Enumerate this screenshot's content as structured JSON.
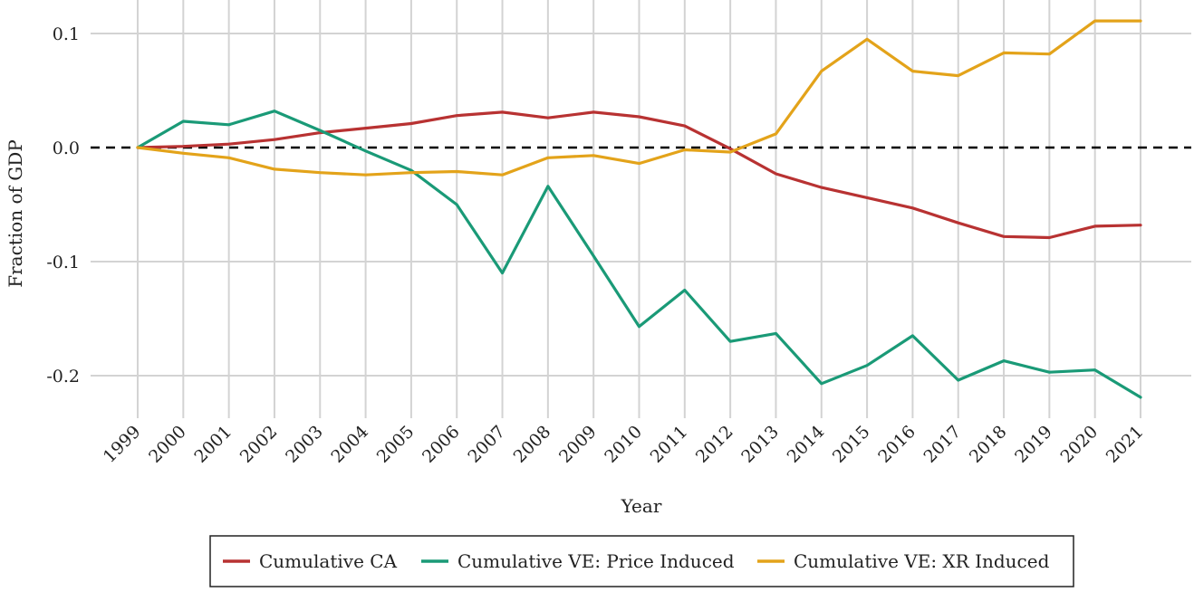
{
  "chart_data": {
    "type": "line",
    "title": "",
    "xlabel": "Year",
    "ylabel": "Fraction of GDP",
    "x": [
      "1999",
      "2000",
      "2001",
      "2002",
      "2003",
      "2004",
      "2005",
      "2006",
      "2007",
      "2008",
      "2009",
      "2010",
      "2011",
      "2012",
      "2013",
      "2014",
      "2015",
      "2016",
      "2017",
      "2018",
      "2019",
      "2020",
      "2021"
    ],
    "y_ticks": [
      0.1,
      0.0,
      -0.1,
      -0.2
    ],
    "y_tick_labels": [
      "0.1",
      "0.0",
      "-0.1",
      "-0.2"
    ],
    "ylim": [
      -0.245,
      0.128
    ],
    "grid": true,
    "zero_line": "dashed",
    "legend_position": "bottom",
    "series": [
      {
        "name": "Cumulative CA",
        "color": "#b83232",
        "values": [
          0.0,
          0.001,
          0.003,
          0.007,
          0.013,
          0.017,
          0.021,
          0.028,
          0.031,
          0.026,
          0.031,
          0.027,
          0.019,
          -0.001,
          -0.023,
          -0.035,
          -0.044,
          -0.053,
          -0.066,
          -0.078,
          -0.079,
          -0.069,
          -0.068
        ]
      },
      {
        "name": "Cumulative VE: Price Induced",
        "color": "#1a9a77",
        "values": [
          0.0,
          0.023,
          0.02,
          0.032,
          0.015,
          -0.003,
          -0.02,
          -0.05,
          -0.11,
          -0.034,
          -0.095,
          -0.157,
          -0.125,
          -0.17,
          -0.163,
          -0.207,
          -0.191,
          -0.165,
          -0.204,
          -0.187,
          -0.197,
          -0.195,
          -0.219
        ]
      },
      {
        "name": "Cumulative VE: XR Induced",
        "color": "#e3a31a",
        "values": [
          0.0,
          -0.005,
          -0.009,
          -0.019,
          -0.022,
          -0.024,
          -0.022,
          -0.021,
          -0.024,
          -0.009,
          -0.007,
          -0.014,
          -0.002,
          -0.004,
          0.012,
          0.067,
          0.095,
          0.067,
          0.063,
          0.083,
          0.082,
          0.111,
          0.111
        ]
      }
    ]
  }
}
